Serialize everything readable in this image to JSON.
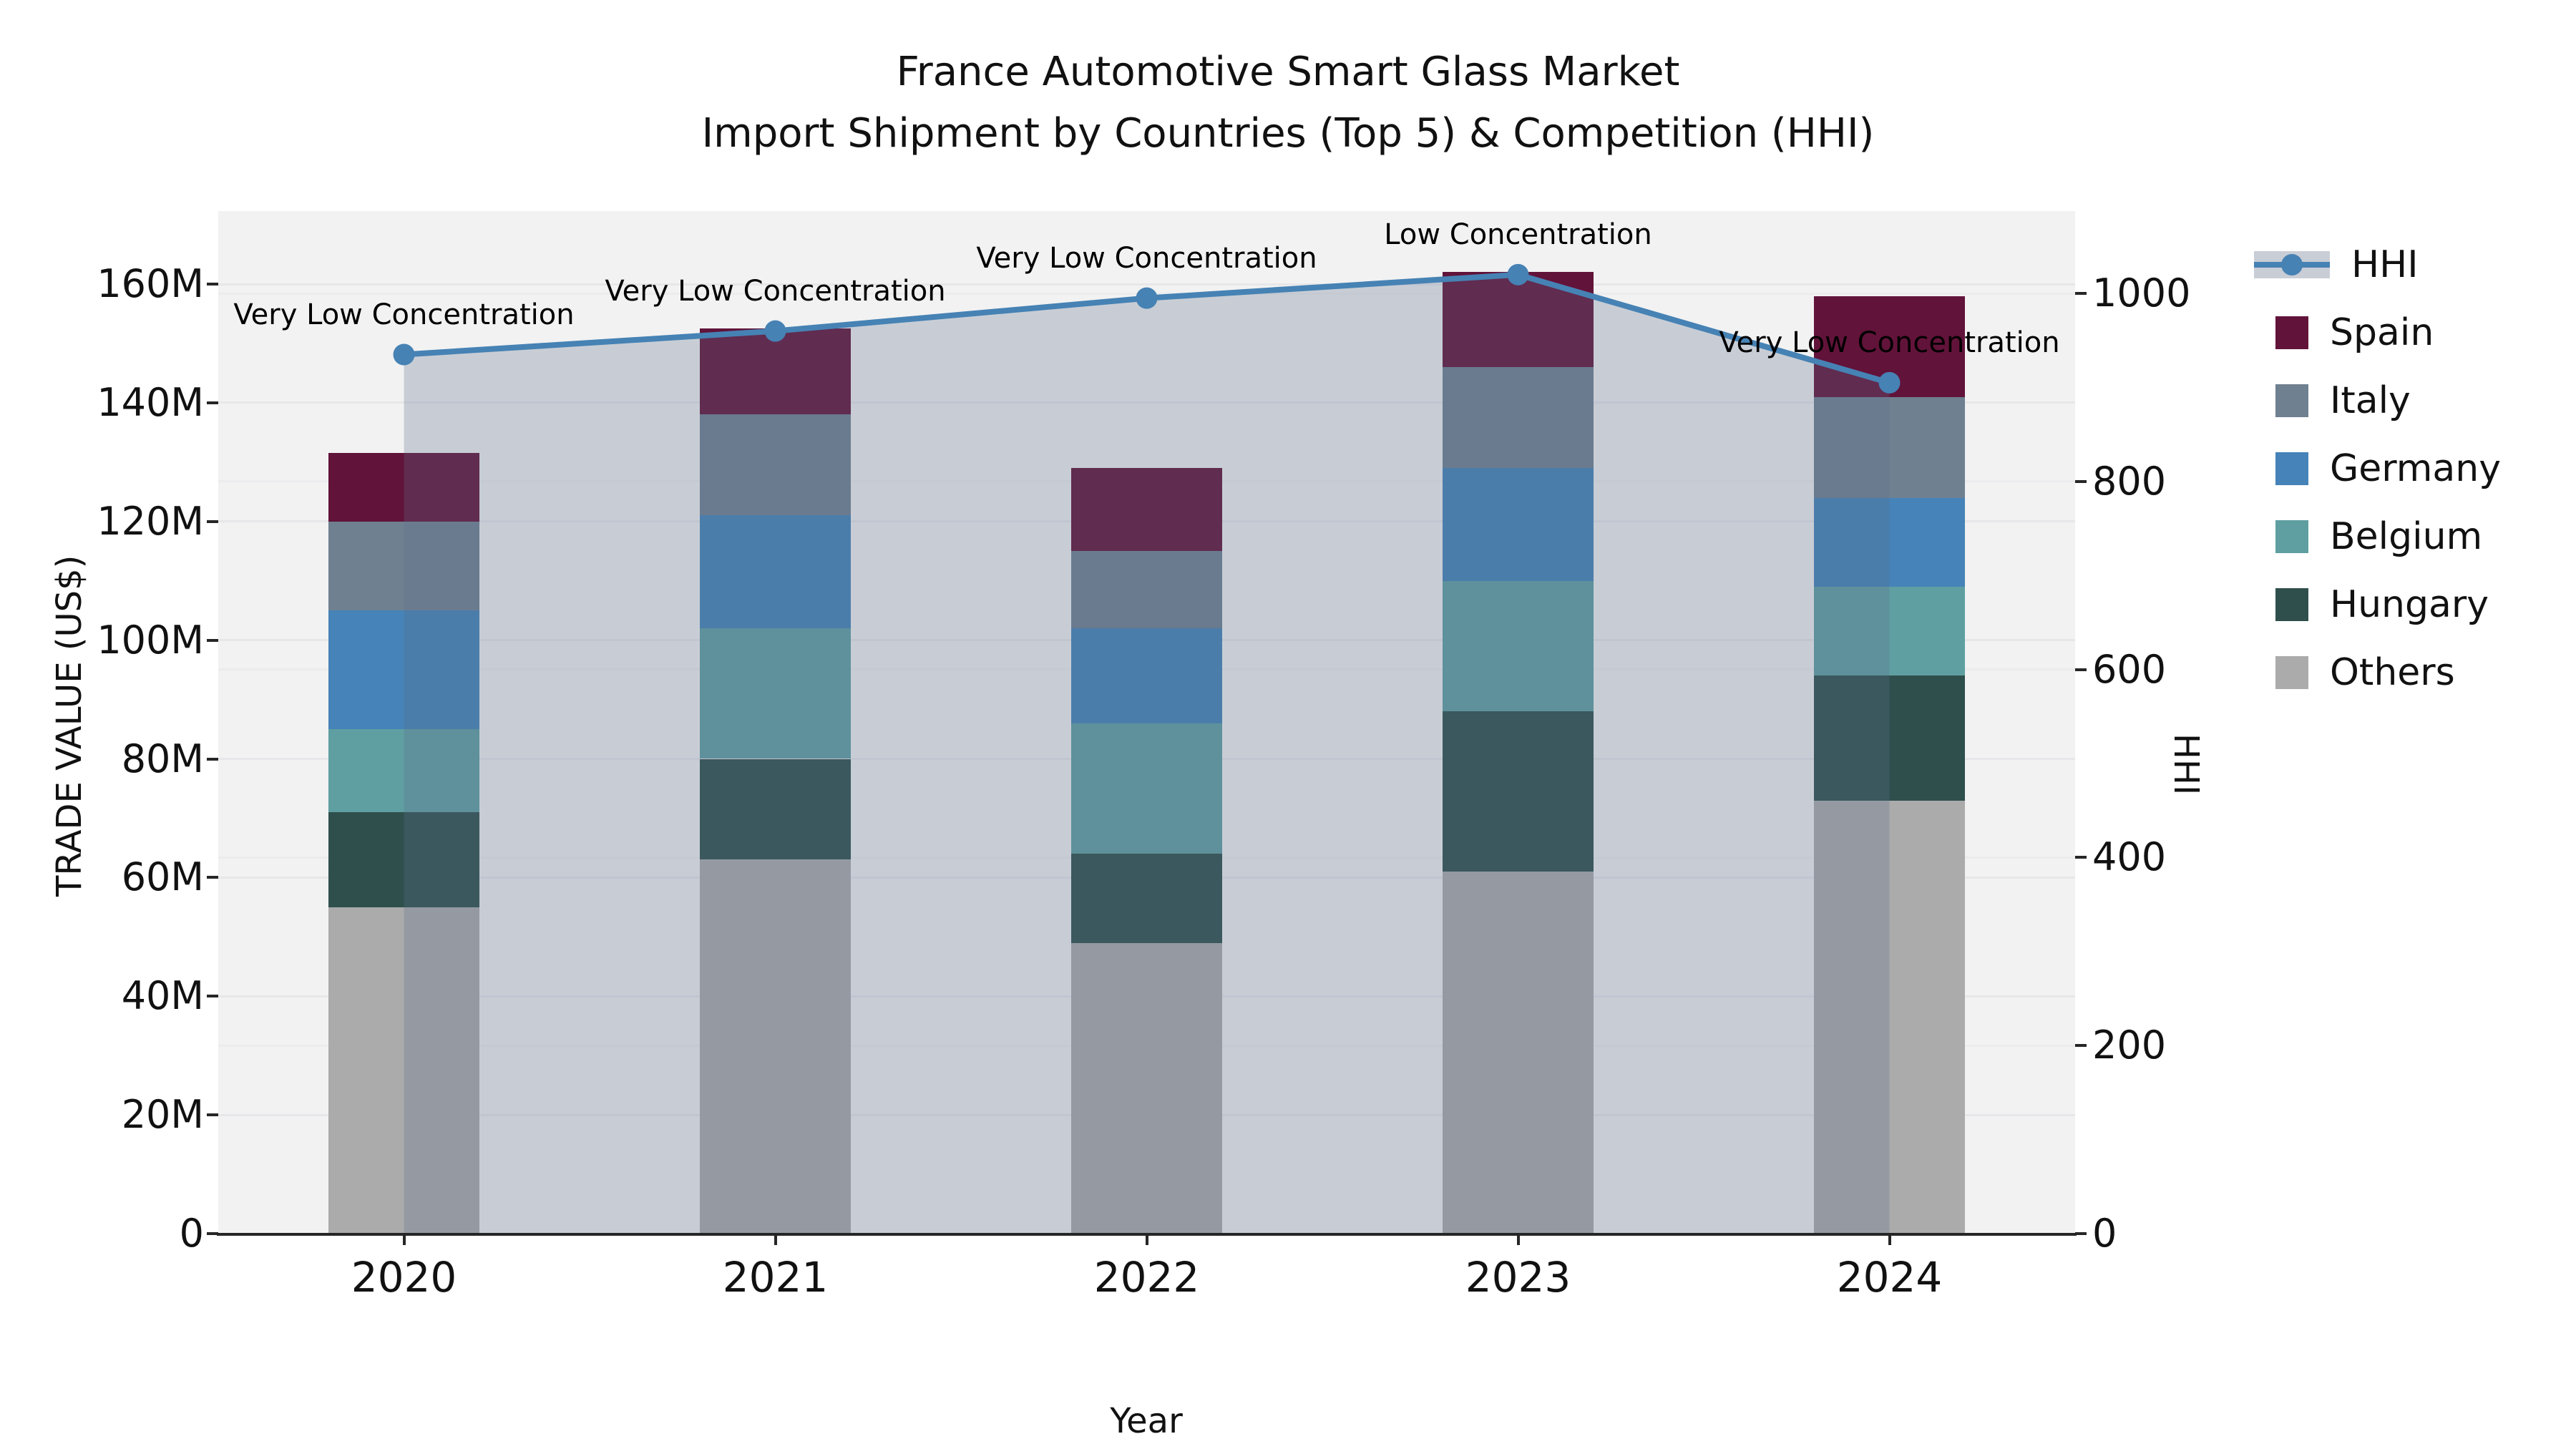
{
  "title": {
    "line1": "France Automotive Smart Glass Market",
    "line2": "Import Shipment by Countries (Top 5) & Competition (HHI)"
  },
  "axes": {
    "y_left": {
      "label": "TRADE VALUE (US$)",
      "tick_labels": [
        "0",
        "20M",
        "40M",
        "60M",
        "80M",
        "100M",
        "120M",
        "140M",
        "160M"
      ]
    },
    "y_right": {
      "label": "HHI",
      "tick_labels": [
        "0",
        "200",
        "400",
        "600",
        "800",
        "1000"
      ]
    },
    "x": {
      "label": "Year"
    }
  },
  "legend": {
    "items": [
      {
        "label": "HHI",
        "type": "line",
        "color": "#4682b4"
      },
      {
        "label": "Spain",
        "type": "swatch",
        "color": "#62133a"
      },
      {
        "label": "Italy",
        "type": "swatch",
        "color": "#6f8090"
      },
      {
        "label": "Germany",
        "type": "swatch",
        "color": "#4583b8"
      },
      {
        "label": "Belgium",
        "type": "swatch",
        "color": "#5f9fa1"
      },
      {
        "label": "Hungary",
        "type": "swatch",
        "color": "#2f4f4d"
      },
      {
        "label": "Others",
        "type": "swatch",
        "color": "#ababab"
      }
    ]
  },
  "chart_data": {
    "type": "bar",
    "subtype": "stacked-bars-with-line-overlay",
    "title": "France Automotive Smart Glass Market — Import Shipment by Countries (Top 5) & Competition (HHI)",
    "categories": [
      "2020",
      "2021",
      "2022",
      "2023",
      "2024"
    ],
    "xlabel": "Year",
    "ylabel_left": "TRADE VALUE (US$)",
    "ylabel_right": "HHI",
    "bar_value_unit": "millions US$",
    "series": [
      {
        "name": "Others",
        "values": [
          55,
          63,
          49,
          61,
          73
        ],
        "color": "#ababab"
      },
      {
        "name": "Hungary",
        "values": [
          16,
          17,
          15,
          27,
          21
        ],
        "color": "#2f4f4d"
      },
      {
        "name": "Belgium",
        "values": [
          14,
          22,
          22,
          22,
          15
        ],
        "color": "#5f9fa1"
      },
      {
        "name": "Germany",
        "values": [
          20,
          19,
          16,
          19,
          15
        ],
        "color": "#4583b8"
      },
      {
        "name": "Italy",
        "values": [
          15,
          17,
          13,
          17,
          17
        ],
        "color": "#6f8090"
      },
      {
        "name": "Spain",
        "values": [
          11.5,
          14.5,
          14,
          16,
          17
        ],
        "color": "#62133a"
      }
    ],
    "stack_totals": [
      131.5,
      152.5,
      129,
      162,
      158
    ],
    "line_series": {
      "name": "HHI",
      "axis": "right",
      "values": [
        935,
        960,
        995,
        1020,
        905
      ],
      "color": "#4682b4",
      "area_fill": "rgba(93,112,141,0.28)",
      "marker": "circle"
    },
    "annotations": [
      "Very Low Concentration",
      "Very Low Concentration",
      "Very Low Concentration",
      "Low Concentration",
      "Very Low Concentration"
    ],
    "ylim_left": [
      0,
      172.3
    ],
    "yticks_left": [
      0,
      20,
      40,
      60,
      80,
      100,
      120,
      140,
      160
    ],
    "ylim_right": [
      0,
      1087.6
    ],
    "yticks_right": [
      0,
      200,
      400,
      600,
      800,
      1000
    ],
    "grid": true,
    "legend_position": "right",
    "plot_background": "#f2f2f2"
  }
}
